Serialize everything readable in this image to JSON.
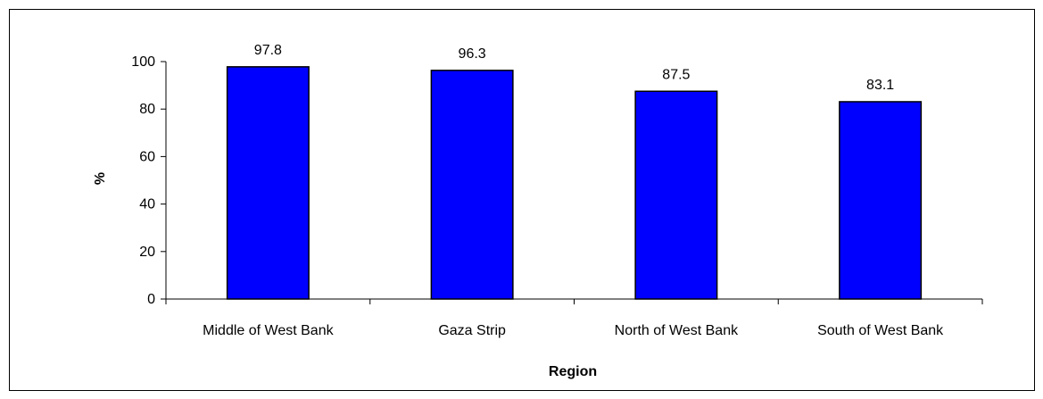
{
  "chart_data": {
    "type": "bar",
    "title": "",
    "xlabel": "Region",
    "ylabel": "%",
    "categories": [
      "Middle of West Bank",
      "Gaza Strip",
      "North of West Bank",
      "South of West Bank"
    ],
    "values": [
      97.8,
      96.3,
      87.5,
      83.1
    ],
    "value_labels": [
      "97.8",
      "96.3",
      "87.5",
      "83.1"
    ],
    "yticks": [
      "0",
      "20",
      "40",
      "60",
      "80",
      "100"
    ],
    "ylim": [
      0,
      100
    ],
    "grid": false,
    "legend": "none",
    "bar_color": "#0000FF"
  }
}
